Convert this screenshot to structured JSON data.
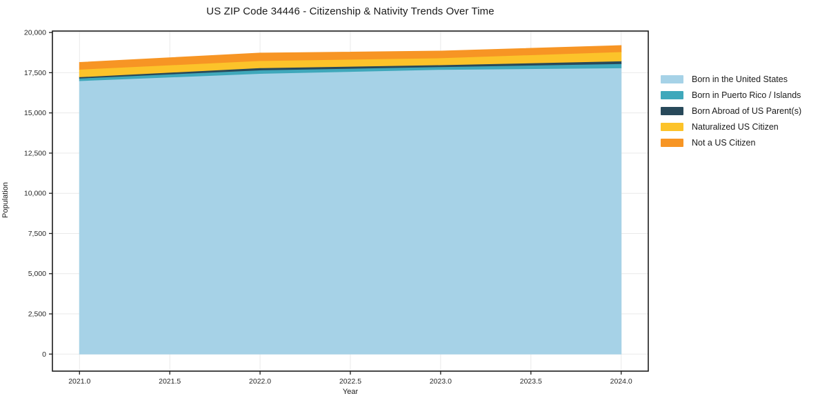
{
  "chart_data": {
    "type": "area",
    "stacked": true,
    "title": "US ZIP Code 34446 - Citizenship & Nativity Trends Over Time",
    "xlabel": "Year",
    "ylabel": "Population",
    "x": [
      2021,
      2022,
      2023,
      2024
    ],
    "series": [
      {
        "name": "Born in the United States",
        "color": "#a6d2e7",
        "values": [
          17000,
          17450,
          17700,
          17800
        ]
      },
      {
        "name": "Born in Puerto Rico / Islands",
        "color": "#3fa8bb",
        "values": [
          160,
          215,
          170,
          260
        ]
      },
      {
        "name": "Born Abroad of US Parent(s)",
        "color": "#28495a",
        "values": [
          80,
          140,
          120,
          170
        ]
      },
      {
        "name": "Naturalized US Citizen",
        "color": "#fcc32a",
        "values": [
          470,
          445,
          430,
          575
        ]
      },
      {
        "name": "Not a US Citizen",
        "color": "#f79524",
        "values": [
          430,
          470,
          425,
          385
        ]
      }
    ],
    "stacked_totals": [
      18140,
      18720,
      18845,
      19190
    ],
    "xlim": [
      2020.85,
      2024.15
    ],
    "ylim": [
      -1060,
      20090
    ],
    "xticks": [
      2021.0,
      2021.5,
      2022.0,
      2022.5,
      2023.0,
      2023.5,
      2024.0
    ],
    "xtick_labels": [
      "2021.0",
      "2021.5",
      "2022.0",
      "2022.5",
      "2023.0",
      "2023.5",
      "2024.0"
    ],
    "yticks": [
      0,
      2500,
      5000,
      7500,
      10000,
      12500,
      15000,
      17500,
      20000
    ],
    "ytick_labels": [
      "0",
      "2,500",
      "5,000",
      "7,500",
      "10,000",
      "12,500",
      "15,000",
      "17,500",
      "20,000"
    ],
    "grid": true,
    "grid_color": "#e9e9e9",
    "spine_color": "#1a1a1a",
    "tick_color": "#1a1a1a",
    "tick_label_color": "#262626",
    "legend_position": "right-outside"
  }
}
